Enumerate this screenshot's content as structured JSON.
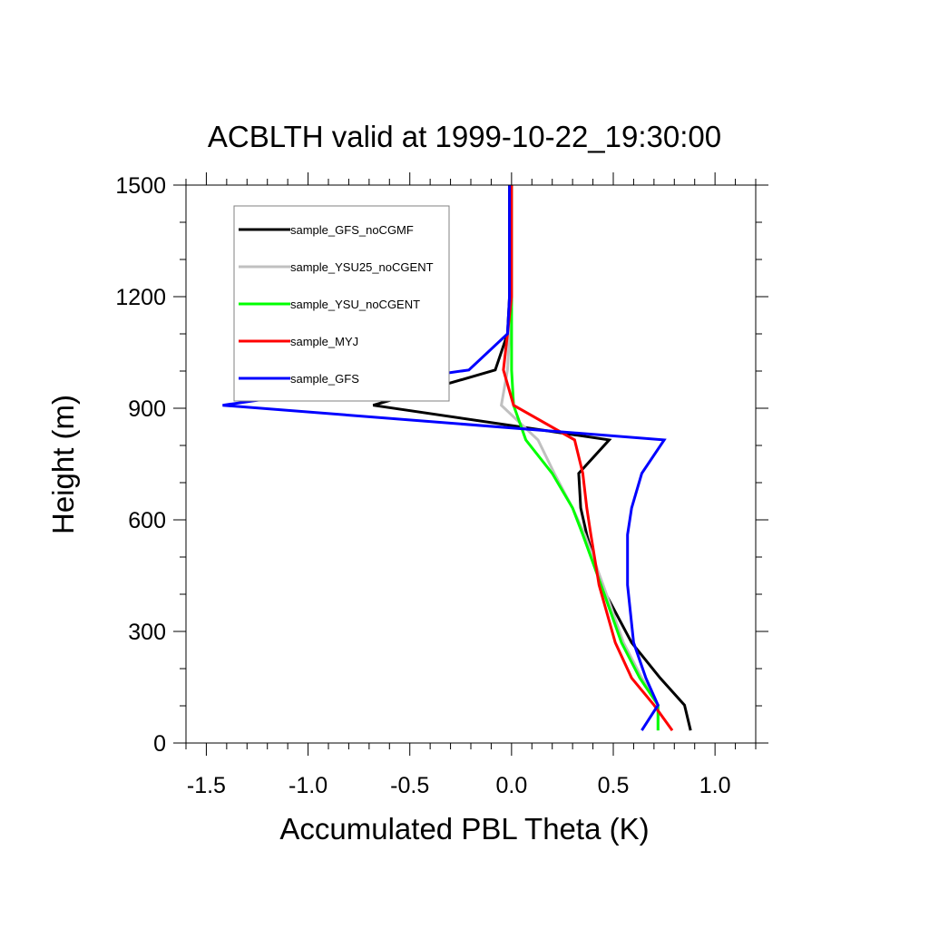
{
  "chart_data": {
    "type": "line",
    "title": "ACBLTH valid at 1999-10-22_19:30:00",
    "xlabel": "Accumulated PBL Theta (K)",
    "ylabel": "Height (m)",
    "xlim": [
      -1.6,
      1.2
    ],
    "ylim": [
      0,
      1500
    ],
    "x_ticks": [
      -1.5,
      -1.0,
      -0.5,
      0.0,
      0.5,
      1.0
    ],
    "x_tick_labels": [
      "-1.5",
      "-1.0",
      "-0.5",
      "0.0",
      "0.5",
      "1.0"
    ],
    "y_ticks": [
      0,
      300,
      600,
      900,
      1200,
      1500
    ],
    "y_tick_labels": [
      "0",
      "300",
      "600",
      "900",
      "1200",
      "1500"
    ],
    "grid": false,
    "legend_position": "top-left",
    "series": [
      {
        "name": "sample_GFS_noCGMF",
        "color": "#000000",
        "x": [
          0.88,
          0.85,
          0.73,
          0.59,
          0.44,
          0.37,
          0.34,
          0.33,
          0.48,
          -0.68,
          -0.08,
          -0.02,
          -0.01,
          -0.01,
          -0.01
        ],
        "y": [
          34,
          102,
          175,
          270,
          425,
          560,
          632,
          725,
          815,
          908,
          1003,
          1100,
          1200,
          1350,
          1500
        ]
      },
      {
        "name": "sample_YSU25_noCGENT",
        "color": "#c0c0c0",
        "x": [
          0.72,
          0.72,
          0.64,
          0.55,
          0.45,
          0.36,
          0.3,
          0.21,
          0.13,
          -0.05,
          -0.02,
          -0.01,
          0.0,
          0.0,
          0.0
        ],
        "y": [
          34,
          102,
          175,
          270,
          425,
          560,
          632,
          725,
          815,
          908,
          1003,
          1100,
          1200,
          1350,
          1500
        ]
      },
      {
        "name": "sample_YSU_noCGENT",
        "color": "#00ff00",
        "x": [
          0.72,
          0.72,
          0.63,
          0.54,
          0.44,
          0.35,
          0.3,
          0.2,
          0.07,
          0.01,
          0.0,
          0.0,
          0.0,
          0.0,
          0.0
        ],
        "y": [
          34,
          102,
          175,
          270,
          425,
          560,
          632,
          725,
          815,
          908,
          1003,
          1100,
          1200,
          1350,
          1500
        ]
      },
      {
        "name": "sample_MYJ",
        "color": "#ff0000",
        "x": [
          0.79,
          0.7,
          0.59,
          0.51,
          0.43,
          0.39,
          0.37,
          0.35,
          0.31,
          0.01,
          -0.04,
          -0.02,
          0.0,
          0.0,
          0.0
        ],
        "y": [
          34,
          102,
          175,
          270,
          425,
          560,
          632,
          725,
          815,
          908,
          1003,
          1100,
          1200,
          1350,
          1500
        ]
      },
      {
        "name": "sample_GFS",
        "color": "#0000ff",
        "x": [
          0.64,
          0.72,
          0.66,
          0.6,
          0.57,
          0.57,
          0.59,
          0.64,
          0.75,
          -1.42,
          -0.21,
          -0.02,
          -0.01,
          -0.01,
          -0.01
        ],
        "y": [
          34,
          102,
          175,
          270,
          425,
          560,
          632,
          725,
          815,
          908,
          1003,
          1100,
          1200,
          1350,
          1500
        ]
      }
    ]
  }
}
